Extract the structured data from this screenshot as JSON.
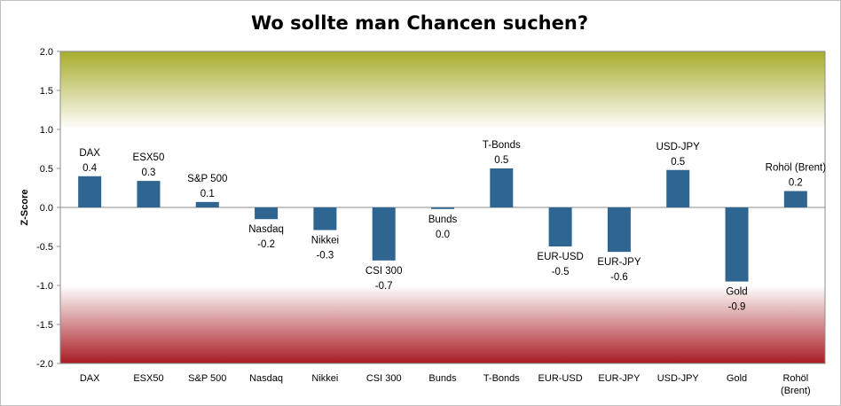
{
  "chart_data": {
    "type": "bar",
    "title": "Wo sollte man Chancen suchen?",
    "xlabel": "",
    "ylabel": "Z-Score",
    "ylim": [
      -2.0,
      2.0
    ],
    "yticks": [
      "2.0",
      "1.5",
      "1.0",
      "0.5",
      "0.0",
      "-0.5",
      "-1.0",
      "-1.5",
      "-2.0"
    ],
    "categories": [
      "DAX",
      "ESX50",
      "S&P 500",
      "Nasdaq",
      "Nikkei",
      "CSI 300",
      "Bunds",
      "T-Bonds",
      "EUR-USD",
      "EUR-JPY",
      "USD-JPY",
      "Gold",
      "Rohöl (Brent)"
    ],
    "values": [
      0.4,
      0.34,
      0.07,
      -0.15,
      -0.29,
      -0.68,
      -0.02,
      0.5,
      -0.5,
      -0.57,
      0.48,
      -0.95,
      0.21
    ],
    "value_labels": [
      "0.4",
      "0.3",
      "0.1",
      "-0.2",
      "-0.3",
      "-0.7",
      "0.0",
      "0.5",
      "-0.5",
      "-0.6",
      "0.5",
      "-0.9",
      "0.2"
    ],
    "bar_color": "#2e6591",
    "bands": [
      {
        "from": 1.0,
        "to": 2.0,
        "top_color": "#a7ac2c",
        "bottom_color": "#ffffff"
      },
      {
        "from": -2.0,
        "to": -1.0,
        "top_color": "#ffffff",
        "bottom_color": "#a81c22"
      }
    ],
    "grid": false,
    "legend": "none"
  }
}
